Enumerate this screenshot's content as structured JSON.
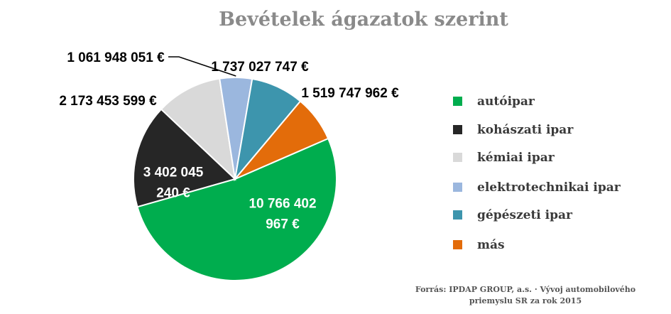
{
  "chart_data": {
    "type": "pie",
    "title": "Bevételek ágazatok szerint",
    "unit": "€",
    "slices": [
      {
        "name": "autóipar",
        "value": 10766402967,
        "label_lines": [
          "10 766 402",
          "967 €"
        ],
        "color": "#00ad4e"
      },
      {
        "name": "kohászati ipar",
        "value": 3402045240,
        "label_lines": [
          "3 402 045",
          "240 €"
        ],
        "color": "#262626"
      },
      {
        "name": "kémiai ipar",
        "value": 2173453599,
        "label_lines": [
          "2 173 453 599 €"
        ],
        "color": "#d9d9d9"
      },
      {
        "name": "elektrotechnikai ipar",
        "value": 1061948051,
        "label_lines": [
          "1 061 948 051 €"
        ],
        "color": "#9bb7de"
      },
      {
        "name": "gépészeti ipar",
        "value": 1737027747,
        "label_lines": [
          "1 737 027 747 €"
        ],
        "color": "#3d95ad"
      },
      {
        "name": "más",
        "value": 1519747962,
        "label_lines": [
          "1 519 747 962 €"
        ],
        "color": "#e36c0a"
      }
    ],
    "legend_position": "right"
  },
  "source": {
    "line1": "Forrás: IPDAP GROUP, a.s. · Vývoj automobilového",
    "line2": "priemyslu SR za rok 2015"
  }
}
